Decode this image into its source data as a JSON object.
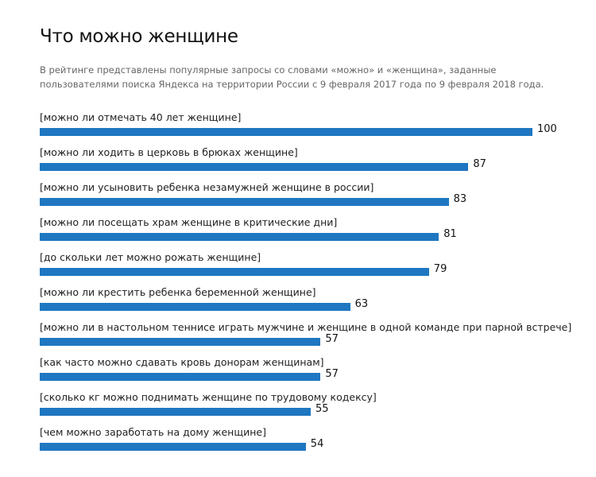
{
  "header": {
    "title": "Что можно женщине",
    "subtitle": "В рейтинге представлены популярные запросы со словами «можно» и «женщина», заданные пользователями поиска Яндекса на территории России с 9 февраля 2017 года по 9 февраля 2018 года."
  },
  "chart_data": {
    "type": "bar",
    "orientation": "horizontal",
    "title": "Что можно женщине",
    "categories": [
      "[можно ли отмечать 40 лет женщине]",
      "[можно ли ходить в церковь в брюках женщине]",
      "[можно ли усыновить ребенка незамужней женщине в россии]",
      "[можно ли посещать храм женщине в критические дни]",
      "[до скольки лет можно рожать женщине]",
      "[можно ли крестить ребенка беременной женщине]",
      "[можно ли в настольном теннисе играть мужчине и женщине в одной команде при парной встрече]",
      "[как часто можно сдавать кровь донорам женщинам]",
      "[сколько кг можно поднимать женщине по трудовому кодексу]",
      "[чем можно заработать на дому женщине]"
    ],
    "values": [
      100,
      87,
      83,
      81,
      79,
      63,
      57,
      57,
      55,
      54
    ],
    "xlim": [
      0,
      100
    ],
    "bar_color": "#1f77c1",
    "grid": false,
    "legend": "none"
  }
}
